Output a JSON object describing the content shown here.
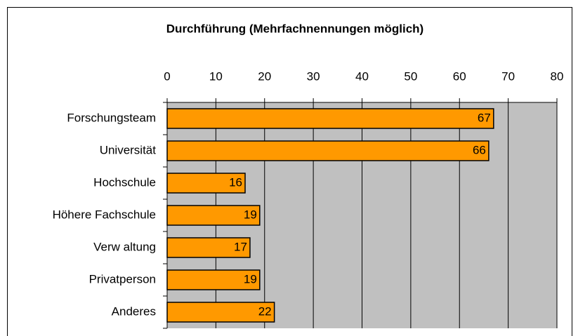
{
  "chart_data": {
    "type": "bar",
    "orientation": "horizontal",
    "title": "Durchführung (Mehrfachnennungen möglich)",
    "categories": [
      "Forschungsteam",
      "Universität",
      "Hochschule",
      "Höhere Fachschule",
      "Verw altung",
      "Privatperson",
      "Anderes"
    ],
    "values": [
      67,
      66,
      16,
      19,
      17,
      19,
      22
    ],
    "color": "#ff9900",
    "plot_background": "#c0c0c0",
    "xlim": [
      0,
      80
    ],
    "xticks": [
      0,
      10,
      20,
      30,
      40,
      50,
      60,
      70,
      80
    ],
    "grid": true
  }
}
